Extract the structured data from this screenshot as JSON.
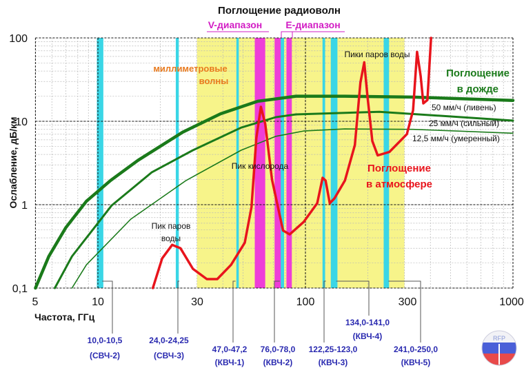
{
  "chart_data": {
    "type": "line",
    "title": "Поглощение радиоволн",
    "xlabel": "Частота, ГГц",
    "ylabel": "Ослабление, дБ/км",
    "x_scale": "log",
    "y_scale": "log",
    "xlim": [
      5,
      1000
    ],
    "ylim": [
      0.1,
      100
    ],
    "x_ticks": [
      "5",
      "10",
      "30",
      "100",
      "300",
      "1000"
    ],
    "x_tick_values": [
      5,
      10,
      30,
      100,
      300,
      1000
    ],
    "y_ticks": [
      "0,1",
      "1",
      "10",
      "100"
    ],
    "y_tick_values": [
      0.1,
      1,
      10,
      100
    ],
    "grid": true,
    "series": [
      {
        "name": "50 мм/ч (ливень)",
        "color": "#1a7a1a",
        "points": [
          [
            5,
            0.1
          ],
          [
            5.8,
            0.24
          ],
          [
            7,
            0.53
          ],
          [
            8.8,
            1.1
          ],
          [
            11.5,
            1.95
          ],
          [
            15.6,
            3.4
          ],
          [
            25.6,
            7.4
          ],
          [
            39,
            12.3
          ],
          [
            59,
            17.4
          ],
          [
            90,
            20
          ],
          [
            155,
            20
          ],
          [
            330,
            19.5
          ],
          [
            1000,
            17.8
          ]
        ]
      },
      {
        "name": "25 мм/ч (сильный)",
        "color": "#1a7a1a",
        "points": [
          [
            6.2,
            0.1
          ],
          [
            7.5,
            0.24
          ],
          [
            11.65,
            0.98
          ],
          [
            18.2,
            2.45
          ],
          [
            28.7,
            4.5
          ],
          [
            49,
            8.4
          ],
          [
            72,
            11.2
          ],
          [
            90,
            12.1
          ],
          [
            227,
            13
          ],
          [
            1000,
            10.2
          ]
        ]
      },
      {
        "name": "12,5 мм/ч (умеренный)",
        "color": "#1a7a1a",
        "points": [
          [
            7.5,
            0.1
          ],
          [
            8.8,
            0.19
          ],
          [
            14.4,
            0.67
          ],
          [
            26.6,
            1.95
          ],
          [
            49,
            4.5
          ],
          [
            72,
            6.6
          ],
          [
            98,
            7.65
          ],
          [
            155,
            8.1
          ],
          [
            330,
            8.0
          ],
          [
            1000,
            7.2
          ]
        ]
      },
      {
        "name": "Поглощение в атмосфере",
        "color": "#e8141c",
        "points": [
          [
            18.4,
            0.1
          ],
          [
            20.4,
            0.227
          ],
          [
            22.8,
            0.33
          ],
          [
            25,
            0.3
          ],
          [
            28.7,
            0.17
          ],
          [
            33.5,
            0.128
          ],
          [
            37.6,
            0.128
          ],
          [
            43.8,
            0.19
          ],
          [
            51,
            0.35
          ],
          [
            55,
            0.94
          ],
          [
            58,
            6.3
          ],
          [
            61,
            14.9
          ],
          [
            64,
            9.3
          ],
          [
            69,
            2.0
          ],
          [
            78,
            0.49
          ],
          [
            84,
            0.44
          ],
          [
            98,
            0.62
          ],
          [
            114,
            1.04
          ],
          [
            121,
            2.1
          ],
          [
            125,
            1.95
          ],
          [
            131,
            1.04
          ],
          [
            138,
            1.19
          ],
          [
            155,
            1.95
          ],
          [
            173,
            5.2
          ],
          [
            184,
            29
          ],
          [
            192,
            51
          ],
          [
            199,
            19.8
          ],
          [
            210,
            5.8
          ],
          [
            223,
            3.9
          ],
          [
            254,
            4.3
          ],
          [
            308,
            7.0
          ],
          [
            330,
            13.5
          ],
          [
            345,
            68
          ],
          [
            359,
            35
          ],
          [
            370,
            16.4
          ],
          [
            387,
            18
          ],
          [
            403,
            100
          ]
        ]
      }
    ],
    "regions": {
      "millimeter_waves": {
        "label": "миллиметровые волны",
        "range": [
          30,
          300
        ],
        "color": "#f7f48a",
        "label_color": "#e87a1e"
      },
      "v_band": {
        "label": "V-диапазон",
        "ranges": [
          [
            57,
            64
          ]
        ],
        "color": "#ee3ed8"
      },
      "e_band": {
        "label": "E-диапазон",
        "ranges": [
          [
            71,
            76
          ],
          [
            81,
            86
          ]
        ],
        "color": "#ee3ed8"
      },
      "allocations_color": "#3ad6e6",
      "allocations": [
        {
          "range": [
            10.0,
            10.5
          ],
          "label": "10,0-10,5",
          "band": "(СВЧ-2)"
        },
        {
          "range": [
            24.0,
            24.25
          ],
          "label": "24,0-24,25",
          "band": "(СВЧ-3)"
        },
        {
          "range": [
            47.0,
            47.2
          ],
          "label": "47,0-47,2",
          "band": "(КВЧ-1)"
        },
        {
          "range": [
            76.0,
            78.0
          ],
          "label": "76,0-78,0",
          "band": "(КВЧ-2)"
        },
        {
          "range": [
            122.25,
            123.0
          ],
          "label": "122,25-123,0",
          "band": "(КВЧ-3)"
        },
        {
          "range": [
            134.0,
            141.0
          ],
          "label": "134,0-141,0",
          "band": "(КВЧ-4)"
        },
        {
          "range": [
            241.0,
            250.0
          ],
          "label": "241,0-250,0",
          "band": "(КВЧ-5)"
        }
      ]
    },
    "annotations": {
      "water_peaks": "Пики паров воды",
      "oxygen_peak": "Пик кислорода",
      "water_peak_1": "Пик паров",
      "water_peak_2": "воды",
      "rain_1": "Поглощение",
      "rain_2": "в дожде",
      "atm_1": "Поглощение",
      "atm_2": "в атмосфере",
      "mm_1": "миллиметровые",
      "mm_2": "волны"
    }
  },
  "logo": {
    "text": "RFP"
  }
}
